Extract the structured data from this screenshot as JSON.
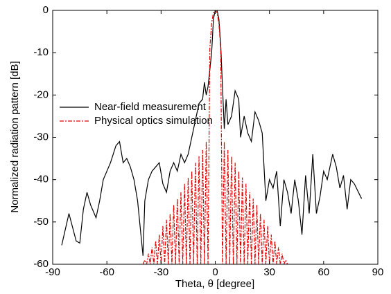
{
  "chart_data": {
    "type": "line",
    "xlabel": "Theta, θ [degree]",
    "ylabel": "Normalized radiation pattern [dB]",
    "xlim": [
      -90,
      90
    ],
    "xticks": [
      -90,
      -60,
      -30,
      0,
      30,
      60,
      90
    ],
    "ylim": [
      -60,
      0
    ],
    "yticks": [
      -60,
      -50,
      -40,
      -30,
      -20,
      -10,
      0
    ],
    "grid": false,
    "legend": "center left",
    "series": [
      {
        "name": "Near-field measurement",
        "color": "#000000",
        "style": "solid",
        "x": [
          -85,
          -81,
          -77,
          -75,
          -73,
          -71,
          -69,
          -66,
          -64,
          -62,
          -60,
          -58,
          -55,
          -53,
          -51,
          -49,
          -47,
          -45,
          -43,
          -40,
          -39,
          -37,
          -35,
          -33,
          -31,
          -29,
          -27,
          -25,
          -23,
          -21,
          -19,
          -17,
          -15,
          -13,
          -11,
          -9,
          -7,
          -6,
          -5,
          -4,
          -2,
          -1,
          0,
          1,
          2,
          3,
          4,
          5,
          6,
          7,
          9,
          11,
          13,
          14,
          16,
          18,
          20,
          22,
          24,
          26,
          28,
          30,
          32,
          34,
          36,
          38,
          40,
          42,
          44,
          46,
          48,
          50,
          52,
          54,
          56,
          58,
          60,
          62,
          65,
          67,
          69,
          71,
          73,
          75,
          77,
          81
        ],
        "values": [
          -55.5,
          -48,
          -54.5,
          -55,
          -47,
          -43,
          -46,
          -49,
          -45,
          -40,
          -38,
          -36,
          -32,
          -31,
          -36,
          -35,
          -37,
          -40,
          -45,
          -58,
          -45,
          -40,
          -38,
          -37,
          -36,
          -41,
          -43,
          -38,
          -36,
          -38,
          -34,
          -36,
          -34,
          -30,
          -26,
          -22,
          -21,
          -17,
          -20,
          -18,
          -10,
          -2,
          0,
          0,
          -2,
          -8,
          -18,
          -28,
          -21,
          -27,
          -25,
          -19,
          -21,
          -30,
          -25,
          -29,
          -31,
          -24,
          -26,
          -29,
          -45,
          -40,
          -42,
          -38,
          -51,
          -40,
          -43,
          -48,
          -40,
          -45,
          -53,
          -39,
          -48,
          -34,
          -48,
          -44,
          -38,
          -40,
          -34,
          -37,
          -42,
          -39,
          -47,
          -40,
          -41,
          -44.5
        ]
      },
      {
        "name": "Physical optics simulation",
        "color": "#e00000",
        "style": "dashdot",
        "x": [
          -40,
          -39,
          -38,
          -37,
          -36,
          -35,
          -34,
          -33,
          -32,
          -31,
          -30,
          -29,
          -28,
          -27,
          -26,
          -25,
          -24,
          -23,
          -22,
          -21,
          -20,
          -19,
          -18,
          -17,
          -16,
          -15,
          -14,
          -13,
          -12,
          -11,
          -10,
          -9,
          -8,
          -7,
          -6,
          -5,
          -4,
          -3,
          -2,
          -1,
          0,
          1,
          2,
          3,
          4,
          5,
          6,
          7,
          8,
          9,
          10,
          11,
          12,
          13,
          14,
          15,
          16,
          17,
          18,
          19,
          20,
          21,
          22,
          23,
          24,
          25,
          26,
          27,
          28,
          29,
          30,
          31,
          32,
          33,
          34,
          35,
          36,
          37,
          38,
          39,
          40
        ],
        "values": [
          -60,
          -59,
          -60,
          -57.5,
          -60,
          -56,
          -60,
          -54.5,
          -60,
          -53,
          -60,
          -51,
          -60,
          -49.5,
          -60,
          -48,
          -60,
          -46,
          -60,
          -44.5,
          -60,
          -43,
          -60,
          -41,
          -60,
          -39.5,
          -60,
          -38,
          -60,
          -36,
          -60,
          -34.5,
          -60,
          -33,
          -60,
          -31,
          -60,
          -9,
          -3,
          -0.5,
          0,
          -0.5,
          -3,
          -9,
          -60,
          -31,
          -60,
          -33,
          -60,
          -34.5,
          -60,
          -36,
          -60,
          -38,
          -60,
          -39.5,
          -60,
          -41,
          -60,
          -43,
          -60,
          -44.5,
          -60,
          -46,
          -60,
          -48,
          -60,
          -49.5,
          -60,
          -51,
          -60,
          -53,
          -60,
          -54.5,
          -60,
          -56,
          -60,
          -57.5,
          -60,
          -59,
          -60
        ]
      }
    ]
  }
}
